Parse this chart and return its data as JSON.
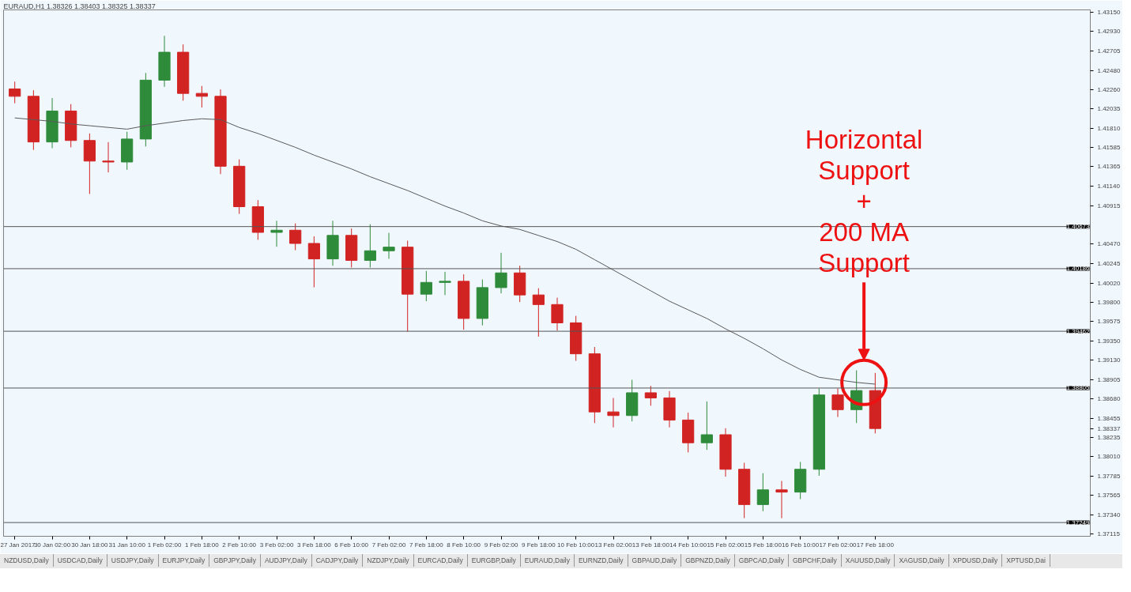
{
  "chart_data": {
    "type": "candlestick",
    "title": "EURAUD,H1 1.38326 1.38403 1.38325 1.38337",
    "categories": [
      "27 Jan 2017",
      null,
      "30 Jan 02:00",
      null,
      "30 Jan 18:00",
      null,
      "31 Jan 10:00",
      null,
      "1 Feb 02:00",
      null,
      "1 Feb 18:00",
      null,
      "2 Feb 10:00",
      null,
      "3 Feb 02:00",
      null,
      "3 Feb 18:00",
      null,
      "6 Feb 10:00",
      null,
      "7 Feb 02:00",
      null,
      "7 Feb 18:00",
      null,
      "8 Feb 10:00",
      null,
      "9 Feb 02:00",
      null,
      "9 Feb 18:00",
      null,
      "10 Feb 10:00",
      null,
      "13 Feb 02:00",
      null,
      "13 Feb 18:00",
      null,
      "14 Feb 10:00",
      null,
      "15 Feb 02:00",
      null,
      "15 Feb 18:00",
      null,
      "16 Feb 10:00",
      null,
      "17 Feb 02:00",
      null,
      "17 Feb 18:00"
    ],
    "ohlc": [
      [
        1.42265,
        1.4235,
        1.421,
        1.4218
      ],
      [
        1.4218,
        1.4225,
        1.4156,
        1.41652
      ],
      [
        1.41652,
        1.4216,
        1.4158,
        1.4201
      ],
      [
        1.4201,
        1.4209,
        1.4159,
        1.41669
      ],
      [
        1.41669,
        1.4175,
        1.4105,
        1.41431
      ],
      [
        1.41431,
        1.4165,
        1.413,
        1.4142
      ],
      [
        1.4142,
        1.4177,
        1.4133,
        1.41686
      ],
      [
        1.41686,
        1.4245,
        1.416,
        1.42367
      ],
      [
        1.42367,
        1.4288,
        1.4229,
        1.4269
      ],
      [
        1.4269,
        1.4278,
        1.4213,
        1.42214
      ],
      [
        1.42214,
        1.423,
        1.4205,
        1.4218
      ],
      [
        1.4218,
        1.4226,
        1.4128,
        1.41371
      ],
      [
        1.41371,
        1.4145,
        1.4082,
        1.40903
      ],
      [
        1.40903,
        1.4098,
        1.4052,
        1.40606
      ],
      [
        1.40606,
        1.4074,
        1.4044,
        1.40631
      ],
      [
        1.40631,
        1.4071,
        1.404,
        1.40478
      ],
      [
        1.40478,
        1.4056,
        1.3997,
        1.40299
      ],
      [
        1.40299,
        1.4074,
        1.4022,
        1.40571
      ],
      [
        1.40571,
        1.4065,
        1.402,
        1.40282
      ],
      [
        1.40282,
        1.407,
        1.402,
        1.40393
      ],
      [
        1.40393,
        1.406,
        1.403,
        1.40435
      ],
      [
        1.40435,
        1.4051,
        1.39457,
        1.39891
      ],
      [
        1.39891,
        1.4016,
        1.3981,
        1.40027
      ],
      [
        1.40027,
        1.4015,
        1.3988,
        1.4004
      ],
      [
        1.4004,
        1.4012,
        1.3948,
        1.3961
      ],
      [
        1.3961,
        1.4006,
        1.3953,
        1.39967
      ],
      [
        1.39967,
        1.4037,
        1.399,
        1.40137
      ],
      [
        1.40137,
        1.4022,
        1.398,
        1.39882
      ],
      [
        1.39882,
        1.3996,
        1.394,
        1.39771
      ],
      [
        1.39771,
        1.3985,
        1.3947,
        1.39559
      ],
      [
        1.39559,
        1.3964,
        1.3912,
        1.39201
      ],
      [
        1.39201,
        1.3928,
        1.384,
        1.38529
      ],
      [
        1.38529,
        1.3869,
        1.3835,
        1.38487
      ],
      [
        1.38487,
        1.389,
        1.3842,
        1.3875
      ],
      [
        1.3875,
        1.3883,
        1.386,
        1.38691
      ],
      [
        1.38691,
        1.3877,
        1.3835,
        1.38435
      ],
      [
        1.38435,
        1.3852,
        1.3806,
        1.38172
      ],
      [
        1.38172,
        1.3865,
        1.3809,
        1.38265
      ],
      [
        1.38265,
        1.3834,
        1.3778,
        1.37865
      ],
      [
        1.37865,
        1.3794,
        1.373,
        1.37457
      ],
      [
        1.37457,
        1.3782,
        1.3738,
        1.37627
      ],
      [
        1.37627,
        1.3773,
        1.373,
        1.37601
      ],
      [
        1.37601,
        1.3795,
        1.3752,
        1.37865
      ],
      [
        1.37865,
        1.388,
        1.3779,
        1.38725
      ],
      [
        1.38725,
        1.388,
        1.3847,
        1.38555
      ],
      [
        1.38555,
        1.3901,
        1.384,
        1.38776
      ],
      [
        1.38776,
        1.3898,
        1.3828,
        1.38337
      ]
    ],
    "colors": [
      "#d22323",
      "#d22323",
      "#2e8b3a",
      "#d22323",
      "#d22323",
      "#d22323",
      "#2e8b3a",
      "#2e8b3a",
      "#2e8b3a",
      "#d22323",
      "#d22323",
      "#d22323",
      "#d22323",
      "#d22323",
      "#2e8b3a",
      "#d22323",
      "#d22323",
      "#2e8b3a",
      "#d22323",
      "#2e8b3a",
      "#2e8b3a",
      "#d22323",
      "#2e8b3a",
      "#2e8b3a",
      "#d22323",
      "#2e8b3a",
      "#2e8b3a",
      "#d22323",
      "#d22323",
      "#d22323",
      "#d22323",
      "#d22323",
      "#d22323",
      "#2e8b3a",
      "#d22323",
      "#d22323",
      "#d22323",
      "#2e8b3a",
      "#d22323",
      "#d22323",
      "#2e8b3a",
      "#d22323",
      "#2e8b3a",
      "#2e8b3a",
      "#d22323",
      "#2e8b3a",
      "#d22323"
    ],
    "series": [
      {
        "type": "line",
        "color": "#5a5a5a",
        "values": [
          1.4193,
          1.4191,
          1.4189,
          1.4186,
          1.4184,
          1.4182,
          1.418,
          1.4184,
          1.4187,
          1.419,
          1.4192,
          1.4191,
          1.4182,
          1.4175,
          1.4167,
          1.4159,
          1.415,
          1.4142,
          1.4134,
          1.4125,
          1.4117,
          1.4109,
          1.41,
          1.4091,
          1.4083,
          1.4074,
          1.4068,
          1.4064,
          1.4057,
          1.405,
          1.4041,
          1.4029,
          1.4017,
          1.4005,
          1.3993,
          1.3981,
          1.3971,
          1.3961,
          1.3949,
          1.3938,
          1.3926,
          1.3913,
          1.3902,
          1.3893,
          1.389,
          1.3887,
          1.3885
        ]
      }
    ],
    "ylim": [
      1.3709,
      1.4318
    ],
    "yticks": [
      {
        "value": 1.4315,
        "label": "1.43150"
      },
      {
        "value": 1.4293,
        "label": "1.42930"
      },
      {
        "value": 1.42705,
        "label": "1.42705"
      },
      {
        "value": 1.4248,
        "label": "1.42480"
      },
      {
        "value": 1.4226,
        "label": "1.42260"
      },
      {
        "value": 1.42035,
        "label": "1.42035"
      },
      {
        "value": 1.4181,
        "label": "1.41810"
      },
      {
        "value": 1.41585,
        "label": "1.41585"
      },
      {
        "value": 1.41365,
        "label": "1.41365"
      },
      {
        "value": 1.4114,
        "label": "1.41140"
      },
      {
        "value": 1.40915,
        "label": "1.40915"
      },
      {
        "value": 1.4047,
        "label": "1.40470"
      },
      {
        "value": 1.40245,
        "label": "1.40245"
      },
      {
        "value": 1.4002,
        "label": "1.40020"
      },
      {
        "value": 1.398,
        "label": "1.39800"
      },
      {
        "value": 1.39575,
        "label": "1.39575"
      },
      {
        "value": 1.3935,
        "label": "1.39350"
      },
      {
        "value": 1.3913,
        "label": "1.39130"
      },
      {
        "value": 1.38905,
        "label": "1.38905"
      },
      {
        "value": 1.3868,
        "label": "1.38680"
      },
      {
        "value": 1.38455,
        "label": "1.38455"
      },
      {
        "value": 1.38337,
        "label": "1.38337"
      },
      {
        "value": 1.38235,
        "label": "1.38235"
      },
      {
        "value": 1.3801,
        "label": "1.38010"
      },
      {
        "value": 1.37785,
        "label": "1.37785"
      },
      {
        "value": 1.37565,
        "label": "1.37565"
      },
      {
        "value": 1.3734,
        "label": "1.37340"
      },
      {
        "value": 1.37115,
        "label": "1.37115"
      }
    ],
    "ref_lines": [
      {
        "axis": "y",
        "value": 1.40673,
        "label": "1.40673",
        "color": "#555555"
      },
      {
        "axis": "y",
        "value": 1.40186,
        "label": "1.40186",
        "color": "#555555"
      },
      {
        "axis": "y",
        "value": 1.39462,
        "label": "1.39462",
        "color": "#555555"
      },
      {
        "axis": "y",
        "value": 1.38805,
        "label": "1.38805",
        "color": "#555555"
      },
      {
        "axis": "y",
        "value": 1.37249,
        "label": "1.37249",
        "color": "#555555"
      }
    ],
    "annotations": [
      "Horizontal\nSupport\n+\n200 MA\nSupport",
      "NZDUSD,Daily",
      "USDCAD,Daily",
      "USDJPY,Daily",
      "EURJPY,Daily",
      "GBPJPY,Daily",
      "AUDJPY,Daily",
      "CADJPY,Daily",
      "NZDJPY,Daily",
      "EURCAD,Daily",
      "EURGBP,Daily",
      "EURAUD,Daily",
      "EURNZD,Daily",
      "GBPAUD,Daily",
      "GBPNZD,Daily",
      "GBPCAD,Daily",
      "GBPCHF,Daily",
      "XAUUSD,Daily",
      "XAGUSD,Daily",
      "XPDUSD,Daily",
      "XPTUSD,Dai"
    ]
  }
}
